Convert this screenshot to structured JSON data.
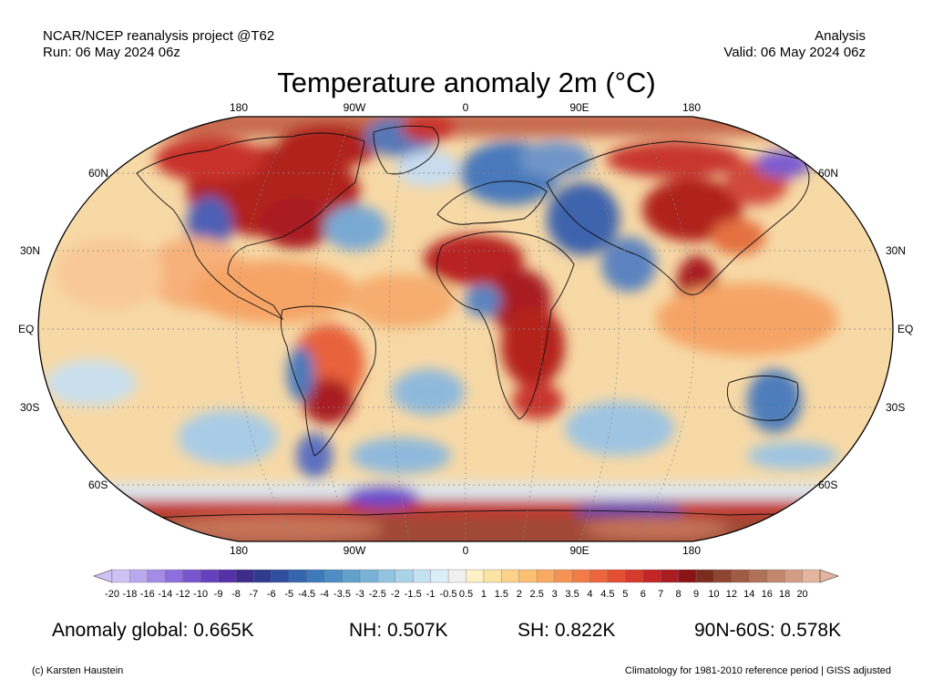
{
  "header": {
    "project": "NCAR/NCEP reanalysis project @T62",
    "run": "Run: 06 May 2024 06z",
    "kind": "Analysis",
    "valid": "Valid: 06 May 2024 06z"
  },
  "title": "Temperature anomaly 2m (°C)",
  "map": {
    "projection": "Robinson",
    "lon_labels": [
      "180",
      "90W",
      "0",
      "90E",
      "180"
    ],
    "lat_labels_left": [
      "60N",
      "30N",
      "EQ",
      "30S",
      "60S"
    ],
    "lat_labels_right": [
      "60N",
      "30N",
      "EQ",
      "30S",
      "60S"
    ],
    "gridlines": "dotted",
    "anomaly_regions": [
      {
        "region": "North America (central/northeast)",
        "sign": "warm"
      },
      {
        "region": "Greenland / Arctic Canada",
        "sign": "warm"
      },
      {
        "region": "North Atlantic (mid-latitude)",
        "sign": "cool"
      },
      {
        "region": "North Africa / Sahara",
        "sign": "warm"
      },
      {
        "region": "Central & Southern Africa",
        "sign": "warm"
      },
      {
        "region": "Europe / Middle East",
        "sign": "cool"
      },
      {
        "region": "Siberia / Central Asia",
        "sign": "warm"
      },
      {
        "region": "Southeast Asia",
        "sign": "warm"
      },
      {
        "region": "South America (southern)",
        "sign": "warm"
      },
      {
        "region": "Southern Ocean",
        "sign": "cool"
      },
      {
        "region": "Antarctica",
        "sign": "warm"
      }
    ]
  },
  "colorbar": {
    "labels": [
      "-20",
      "-18",
      "-16",
      "-14",
      "-12",
      "-10",
      "-9",
      "-8",
      "-7",
      "-6",
      "-5",
      "-4.5",
      "-4",
      "-3.5",
      "-3",
      "-2.5",
      "-2",
      "-1.5",
      "-1",
      "-0.5",
      "0.5",
      "1",
      "1.5",
      "2",
      "2.5",
      "3",
      "3.5",
      "4",
      "4.5",
      "5",
      "6",
      "7",
      "8",
      "9",
      "10",
      "12",
      "14",
      "16",
      "18",
      "20"
    ],
    "colors": [
      "#cdc2f5",
      "#b9a8ee",
      "#a48be6",
      "#8e6edc",
      "#7955cf",
      "#6641bd",
      "#5530a6",
      "#3e2b8a",
      "#2e3c8f",
      "#2f4f9e",
      "#3565ae",
      "#3e79b9",
      "#4d8dc3",
      "#62a0cc",
      "#79b2d6",
      "#92c3df",
      "#abd3e8",
      "#c5e2f0",
      "#dceef7",
      "#f0f0f0",
      "#fdf1c6",
      "#fde4a4",
      "#fcd28a",
      "#fbbf74",
      "#f9a962",
      "#f69353",
      "#f27c47",
      "#ec653c",
      "#e24f33",
      "#d63a2c",
      "#c42526",
      "#a91c22",
      "#8c1313",
      "#7c2d1f",
      "#8e4631",
      "#9f5c44",
      "#b07058",
      "#c1866c",
      "#d29d84",
      "#e2b59c"
    ]
  },
  "stats": {
    "global": "Anomaly global: 0.665K",
    "nh": "NH: 0.507K",
    "sh": "SH: 0.822K",
    "polar": "90N-60S: 0.578K"
  },
  "footer": {
    "credit": "(c) Karsten Haustein",
    "note": "Climatology for 1981-2010 reference period | GISS adjusted"
  }
}
